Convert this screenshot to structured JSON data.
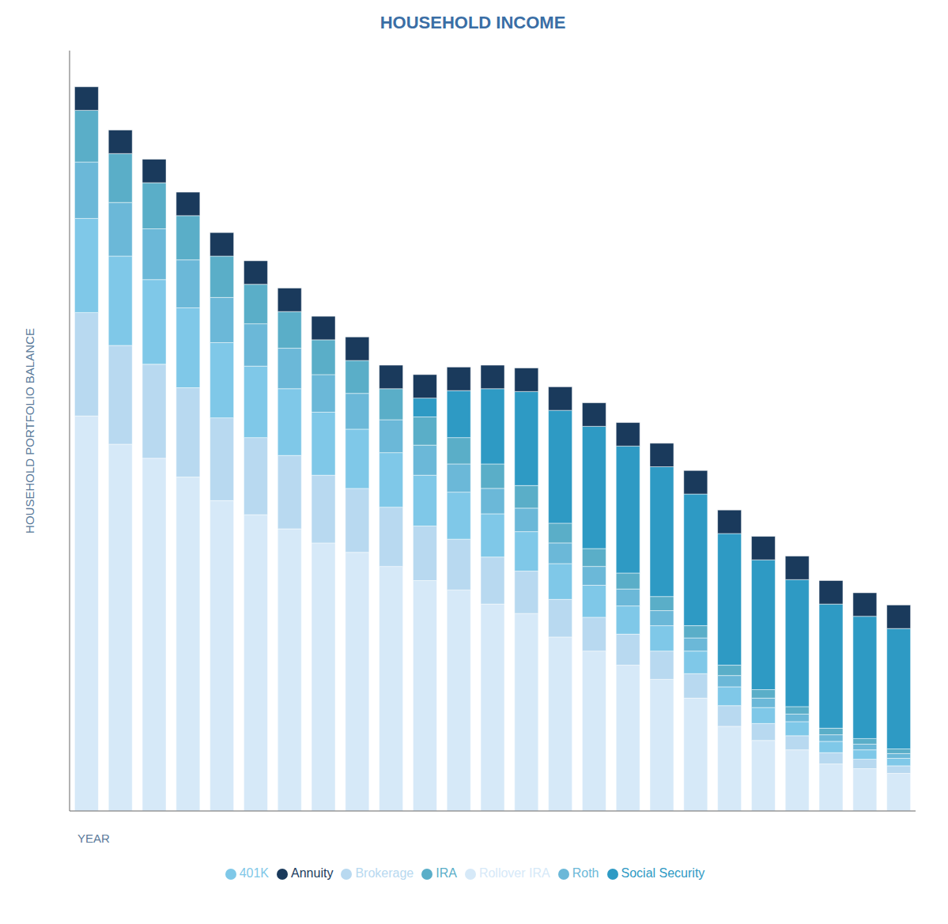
{
  "chart_data": {
    "type": "bar",
    "title": "HOUSEHOLD INCOME",
    "x_label": "YEAR",
    "y_label": "HOUSEHOLD PORTFOLIO BALANCE",
    "categories": [
      null,
      null,
      null,
      null,
      null,
      null,
      null,
      null,
      null,
      null,
      null,
      null,
      null,
      null,
      null,
      null,
      null,
      null,
      null,
      null,
      null,
      null,
      null,
      null,
      null
    ],
    "series": [
      {
        "name": "Rollover IRA",
        "color": "#d6e9f8",
        "values": [
          420,
          390,
          375,
          355,
          330,
          315,
          300,
          285,
          275,
          260,
          245,
          235,
          220,
          210,
          185,
          170,
          155,
          140,
          120,
          90,
          75,
          65,
          50,
          45,
          40
        ]
      },
      {
        "name": "Brokerage",
        "color": "#b8d9f0",
        "values": [
          110,
          105,
          100,
          95,
          88,
          82,
          78,
          72,
          68,
          63,
          58,
          54,
          50,
          45,
          40,
          36,
          33,
          30,
          26,
          22,
          18,
          15,
          12,
          10,
          8
        ]
      },
      {
        "name": "401K",
        "color": "#7fc8e8",
        "values": [
          100,
          95,
          90,
          85,
          80,
          76,
          71,
          67,
          63,
          58,
          54,
          50,
          46,
          42,
          38,
          34,
          30,
          27,
          24,
          20,
          17,
          15,
          12,
          10,
          8
        ]
      },
      {
        "name": "Roth",
        "color": "#6bb8d8",
        "values": [
          60,
          57,
          54,
          51,
          48,
          45,
          43,
          40,
          38,
          35,
          32,
          30,
          27,
          25,
          22,
          20,
          18,
          16,
          14,
          12,
          10,
          8,
          7,
          6,
          5
        ]
      },
      {
        "name": "IRA",
        "color": "#5aaec8",
        "values": [
          55,
          52,
          49,
          47,
          44,
          42,
          39,
          37,
          35,
          33,
          30,
          28,
          26,
          24,
          21,
          19,
          17,
          15,
          13,
          11,
          9,
          8,
          7,
          6,
          5
        ]
      },
      {
        "name": "Social Security",
        "color": "#2e9ac4",
        "values": [
          0,
          0,
          0,
          0,
          0,
          0,
          0,
          0,
          0,
          0,
          20,
          50,
          80,
          100,
          120,
          130,
          135,
          138,
          140,
          140,
          138,
          135,
          132,
          130,
          128
        ]
      },
      {
        "name": "Annuity",
        "color": "#1a3a5c",
        "values": [
          25,
          25,
          25,
          25,
          25,
          25,
          25,
          25,
          25,
          25,
          25,
          25,
          25,
          25,
          25,
          25,
          25,
          25,
          25,
          25,
          25,
          25,
          25,
          25,
          25
        ]
      }
    ],
    "ylim": [
      0,
      808.5
    ],
    "stacked": true,
    "grid": false,
    "legend": "bottom",
    "tick_labels": false
  }
}
